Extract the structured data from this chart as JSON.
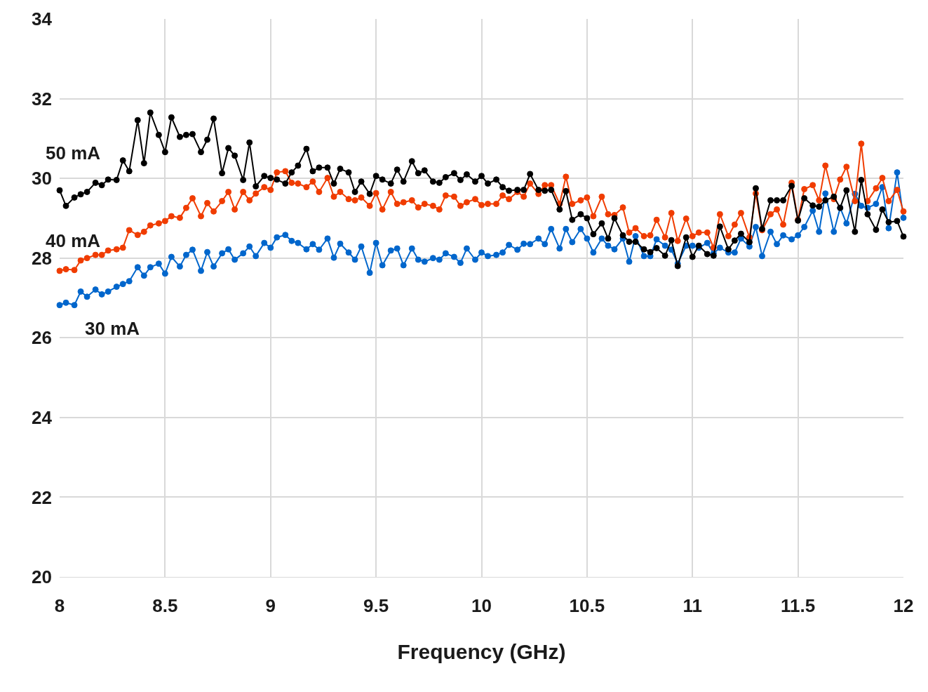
{
  "chart_data": {
    "type": "line",
    "xlabel": "Frequency (GHz)",
    "xlim": [
      8,
      12
    ],
    "xticks": [
      8,
      8.5,
      9,
      9.5,
      10,
      10.5,
      11,
      11.5,
      12
    ],
    "ylim": [
      20,
      34
    ],
    "yticks": [
      20,
      22,
      24,
      26,
      28,
      30,
      32,
      34
    ],
    "grid": true,
    "legend": false,
    "marker": "circle",
    "line_style": "solid",
    "x": [
      8,
      8.03,
      8.07,
      8.1,
      8.13,
      8.17,
      8.2,
      8.23,
      8.27,
      8.3,
      8.33,
      8.37,
      8.4,
      8.43,
      8.47,
      8.5,
      8.53,
      8.57,
      8.6,
      8.63,
      8.67,
      8.7,
      8.73,
      8.77,
      8.8,
      8.83,
      8.87,
      8.9,
      8.93,
      8.97,
      9,
      9.03,
      9.07,
      9.1,
      9.13,
      9.17,
      9.2,
      9.23,
      9.27,
      9.3,
      9.33,
      9.37,
      9.4,
      9.43,
      9.47,
      9.5,
      9.53,
      9.57,
      9.6,
      9.63,
      9.67,
      9.7,
      9.73,
      9.77,
      9.8,
      9.83,
      9.87,
      9.9,
      9.93,
      9.97,
      10,
      10.03,
      10.07,
      10.1,
      10.13,
      10.17,
      10.2,
      10.23,
      10.27,
      10.3,
      10.33,
      10.37,
      10.4,
      10.43,
      10.47,
      10.5,
      10.53,
      10.57,
      10.6,
      10.63,
      10.67,
      10.7,
      10.73,
      10.77,
      10.8,
      10.83,
      10.87,
      10.9,
      10.93,
      10.97,
      11,
      11.03,
      11.07,
      11.1,
      11.13,
      11.17,
      11.2,
      11.23,
      11.27,
      11.3,
      11.33,
      11.37,
      11.4,
      11.43,
      11.47,
      11.5,
      11.53,
      11.57,
      11.6,
      11.63,
      11.67,
      11.7,
      11.73,
      11.77,
      11.8,
      11.83,
      11.87,
      11.9,
      11.93,
      11.97,
      12
    ],
    "series": [
      {
        "name": "30 mA",
        "color": "#0066cc",
        "values": [
          26.82,
          26.88,
          26.82,
          27.16,
          27.03,
          27.21,
          27.09,
          27.16,
          27.28,
          27.35,
          27.42,
          27.77,
          27.56,
          27.77,
          27.86,
          27.61,
          28.03,
          27.79,
          28.08,
          28.21,
          27.68,
          28.15,
          27.79,
          28.12,
          28.22,
          27.96,
          28.12,
          28.29,
          28.05,
          28.38,
          28.26,
          28.52,
          28.58,
          28.43,
          28.38,
          28.22,
          28.35,
          28.21,
          28.49,
          28.01,
          28.36,
          28.14,
          27.96,
          28.29,
          27.63,
          28.38,
          27.82,
          28.19,
          28.24,
          27.82,
          28.24,
          27.96,
          27.91,
          28.0,
          27.96,
          28.12,
          28.03,
          27.88,
          28.24,
          27.96,
          28.14,
          28.05,
          28.08,
          28.14,
          28.33,
          28.21,
          28.36,
          28.35,
          28.49,
          28.35,
          28.73,
          28.24,
          28.73,
          28.4,
          28.73,
          28.49,
          28.14,
          28.49,
          28.31,
          28.22,
          28.49,
          27.91,
          28.55,
          28.05,
          28.05,
          28.47,
          28.31,
          28.21,
          27.86,
          28.31,
          28.31,
          28.26,
          28.38,
          28.12,
          28.26,
          28.14,
          28.14,
          28.49,
          28.29,
          28.78,
          28.05,
          28.66,
          28.35,
          28.57,
          28.47,
          28.57,
          28.78,
          29.19,
          28.66,
          29.62,
          28.66,
          29.26,
          28.87,
          29.61,
          29.31,
          29.26,
          29.36,
          29.78,
          28.75,
          30.15,
          29.01
        ]
      },
      {
        "name": "40 mA",
        "color": "#f03c00",
        "values": [
          27.68,
          27.72,
          27.7,
          27.94,
          28.0,
          28.08,
          28.08,
          28.19,
          28.22,
          28.26,
          28.7,
          28.58,
          28.66,
          28.82,
          28.87,
          28.93,
          29.05,
          29.01,
          29.26,
          29.5,
          29.05,
          29.38,
          29.17,
          29.43,
          29.66,
          29.22,
          29.66,
          29.45,
          29.62,
          29.78,
          29.71,
          30.15,
          30.18,
          29.89,
          29.87,
          29.78,
          29.92,
          29.66,
          30.01,
          29.54,
          29.66,
          29.48,
          29.45,
          29.52,
          29.31,
          29.63,
          29.22,
          29.66,
          29.36,
          29.4,
          29.45,
          29.27,
          29.36,
          29.31,
          29.22,
          29.57,
          29.54,
          29.31,
          29.4,
          29.48,
          29.33,
          29.36,
          29.36,
          29.57,
          29.48,
          29.66,
          29.54,
          29.87,
          29.61,
          29.83,
          29.83,
          29.36,
          30.04,
          29.36,
          29.45,
          29.52,
          29.05,
          29.54,
          29.1,
          29.08,
          29.27,
          28.64,
          28.75,
          28.55,
          28.57,
          28.96,
          28.52,
          29.13,
          28.43,
          28.99,
          28.55,
          28.64,
          28.64,
          28.26,
          29.1,
          28.55,
          28.84,
          29.13,
          28.52,
          29.62,
          28.7,
          29.1,
          29.22,
          28.84,
          29.89,
          28.96,
          29.73,
          29.83,
          29.45,
          30.32,
          29.48,
          29.97,
          30.29,
          29.43,
          30.87,
          29.43,
          29.75,
          30.01,
          29.43,
          29.71,
          29.17
        ]
      },
      {
        "name": "50 mA",
        "color": "#000000",
        "values": [
          29.7,
          29.31,
          29.52,
          29.6,
          29.66,
          29.89,
          29.83,
          29.97,
          29.96,
          30.45,
          30.18,
          31.46,
          30.38,
          31.65,
          31.09,
          30.66,
          31.53,
          31.04,
          31.09,
          31.11,
          30.66,
          30.97,
          31.5,
          30.13,
          30.76,
          30.57,
          29.96,
          30.9,
          29.8,
          30.06,
          30.01,
          29.97,
          29.87,
          30.15,
          30.32,
          30.74,
          30.18,
          30.27,
          30.27,
          29.87,
          30.24,
          30.15,
          29.66,
          29.92,
          29.61,
          30.06,
          29.97,
          29.87,
          30.22,
          29.92,
          30.43,
          30.13,
          30.2,
          29.92,
          29.89,
          30.03,
          30.13,
          29.96,
          30.1,
          29.92,
          30.06,
          29.87,
          29.97,
          29.78,
          29.69,
          29.71,
          29.71,
          30.11,
          29.71,
          29.69,
          29.71,
          29.22,
          29.68,
          28.96,
          29.1,
          29.0,
          28.6,
          28.87,
          28.49,
          29.0,
          28.57,
          28.41,
          28.41,
          28.22,
          28.15,
          28.25,
          28.06,
          28.45,
          27.8,
          28.52,
          28.03,
          28.31,
          28.1,
          28.06,
          28.79,
          28.22,
          28.44,
          28.61,
          28.4,
          29.75,
          28.73,
          29.45,
          29.45,
          29.45,
          29.81,
          28.94,
          29.5,
          29.32,
          29.29,
          29.45,
          29.54,
          29.26,
          29.7,
          28.66,
          29.96,
          29.1,
          28.71,
          29.22,
          28.9,
          28.93,
          28.54
        ]
      }
    ]
  }
}
